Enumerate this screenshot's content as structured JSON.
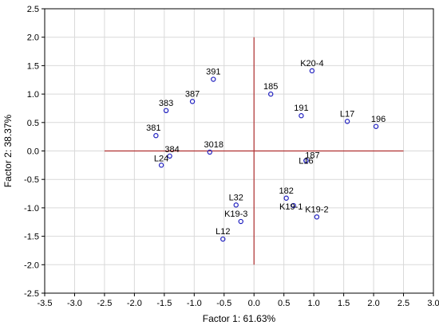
{
  "chart_data": {
    "type": "scatter",
    "title": "",
    "xlabel": "Factor 1: 61.63%",
    "ylabel": "Factor 2: 38.37%",
    "xlim": [
      -3.5,
      3.0
    ],
    "ylim": [
      -2.5,
      2.5
    ],
    "xticks": [
      "-3.5",
      "-3.0",
      "-2.5",
      "-2.0",
      "-1.5",
      "-1.0",
      "-0.5",
      "0.0",
      "0.5",
      "1.0",
      "1.5",
      "2.0",
      "2.5",
      "3.0"
    ],
    "yticks": [
      "2.5",
      "2.0",
      "1.5",
      "1.0",
      "0.5",
      "0.0",
      "-0.5",
      "-1.0",
      "-1.5",
      "-2.0",
      "-2.5"
    ],
    "grid": true,
    "reference_lines": {
      "horizontal": {
        "y": 0.0,
        "x_from": -2.5,
        "x_to": 2.5
      },
      "vertical": {
        "x": 0.0,
        "y_from": -2.0,
        "y_to": 2.0
      }
    },
    "colors": {
      "points": "#1f1fbf",
      "reference": "#b03030",
      "grid": "#d9d9d9",
      "frame": "#000000"
    },
    "points": [
      {
        "label": "391",
        "x": -0.68,
        "y": 1.26
      },
      {
        "label": "387",
        "x": -1.03,
        "y": 0.87
      },
      {
        "label": "383",
        "x": -1.47,
        "y": 0.71
      },
      {
        "label": "381",
        "x": -1.64,
        "y": 0.27
      },
      {
        "label": "384",
        "x": -1.41,
        "y": -0.09
      },
      {
        "label": "L24",
        "x": -1.55,
        "y": -0.25
      },
      {
        "label": "3018",
        "x": -0.74,
        "y": -0.02
      },
      {
        "label": "185",
        "x": 0.28,
        "y": 1.0
      },
      {
        "label": "K20-4",
        "x": 0.97,
        "y": 1.41
      },
      {
        "label": "191",
        "x": 0.79,
        "y": 0.62
      },
      {
        "label": "L17",
        "x": 1.56,
        "y": 0.52
      },
      {
        "label": "196",
        "x": 2.04,
        "y": 0.43
      },
      {
        "label": "187",
        "x": 0.87,
        "y": -0.17
      },
      {
        "label": "L16",
        "x": 0.87,
        "y": -0.17
      },
      {
        "label": "182",
        "x": 0.54,
        "y": -0.83
      },
      {
        "label": "K19-1",
        "x": 0.66,
        "y": -0.96
      },
      {
        "label": "K19-2",
        "x": 1.05,
        "y": -1.16
      },
      {
        "label": "L32",
        "x": -0.3,
        "y": -0.95
      },
      {
        "label": "K19-3",
        "x": -0.22,
        "y": -1.24
      },
      {
        "label": "L12",
        "x": -0.52,
        "y": -1.55
      }
    ]
  }
}
